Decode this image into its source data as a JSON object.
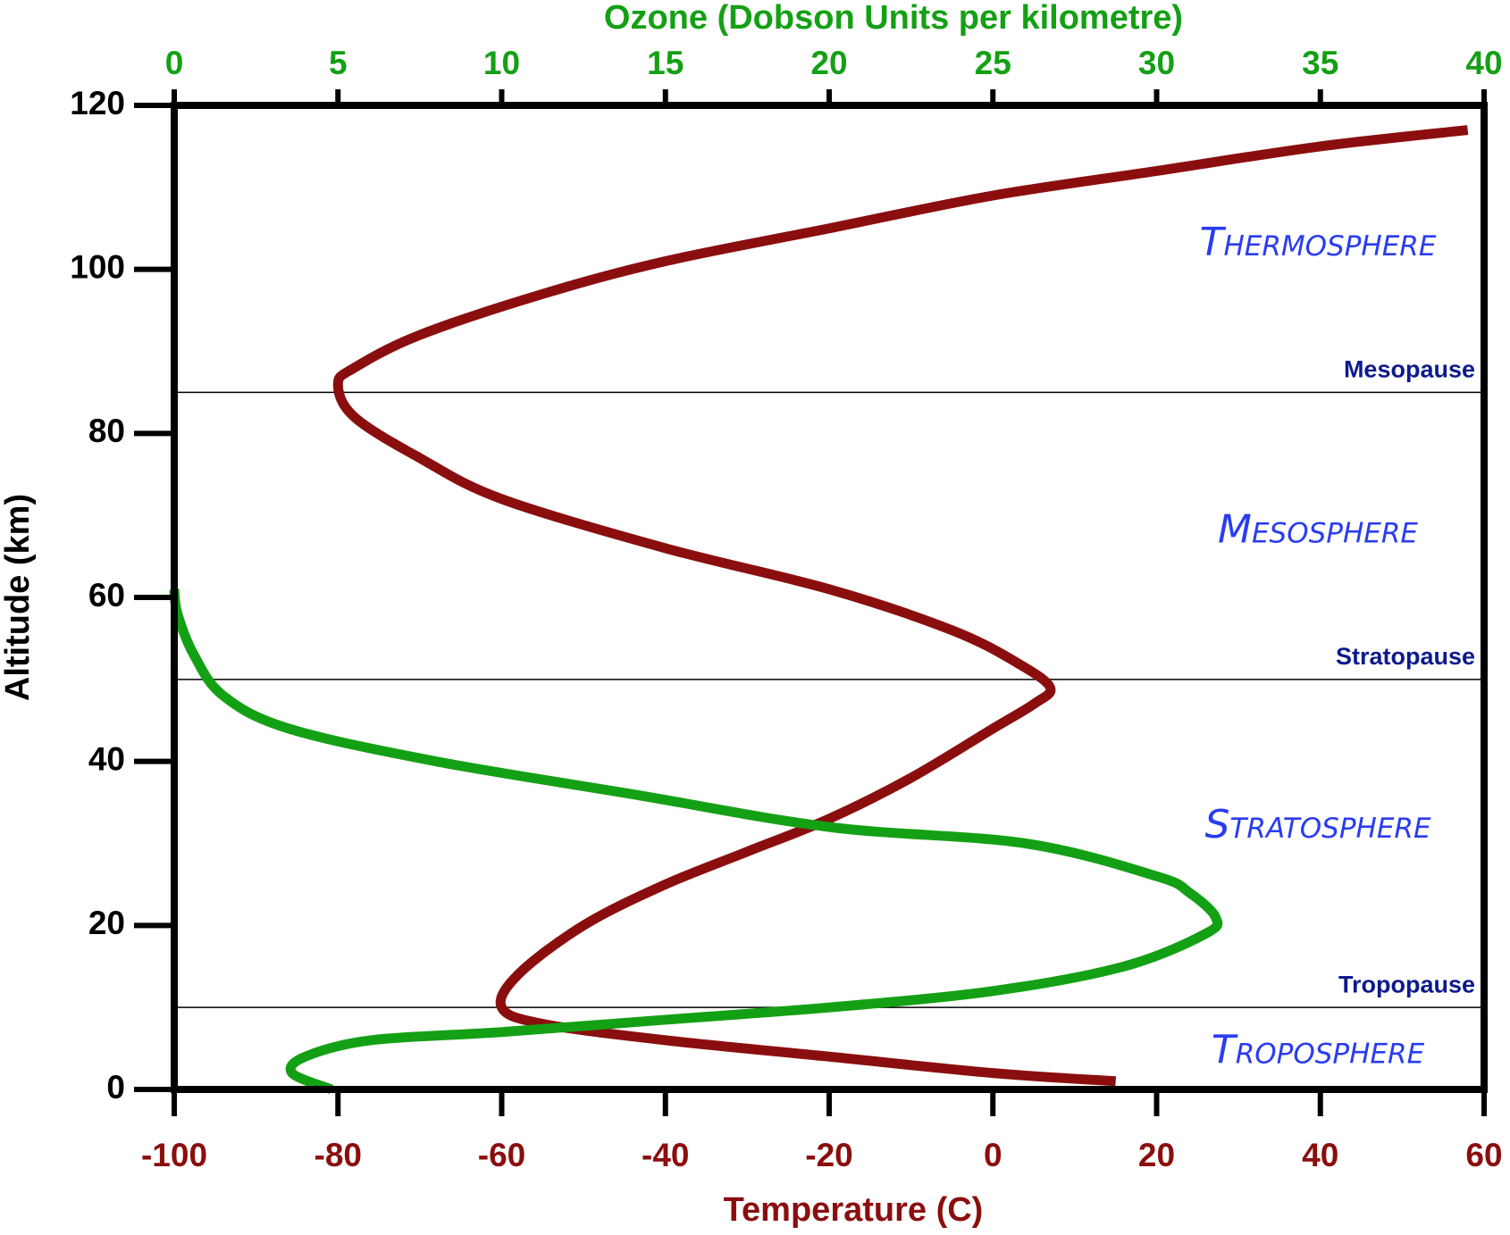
{
  "chart_data": {
    "type": "line",
    "title": "Ozone (Dobson Units per kilometre)",
    "x_label": "Temperature (C)",
    "y_label": "Altitude (km)",
    "xlim": [
      -100,
      60
    ],
    "xticks": [
      -100,
      -80,
      -60,
      -40,
      -20,
      0,
      20,
      40,
      60
    ],
    "x2lim": [
      0,
      40
    ],
    "x2ticks": [
      0,
      5,
      10,
      15,
      20,
      25,
      30,
      35,
      40
    ],
    "ylim": [
      0,
      120
    ],
    "yticks": [
      0,
      20,
      40,
      60,
      80,
      100,
      120
    ],
    "series": [
      {
        "name": "Temperature",
        "color": "#8b0e0e",
        "x": [
          15,
          0,
          -20,
          -40,
          -55,
          -60,
          -58,
          -50,
          -40,
          -30,
          -20,
          -10,
          0,
          5,
          7,
          3,
          -5,
          -20,
          -40,
          -60,
          -70,
          -78,
          -80,
          -78,
          -70,
          -55,
          -40,
          -20,
          0,
          20,
          40,
          58
        ],
        "values": [
          1,
          2,
          4,
          6,
          8,
          10,
          14,
          20,
          25,
          29,
          33,
          38,
          44,
          47,
          49,
          52,
          56,
          61,
          66,
          72,
          77,
          82,
          86,
          88,
          92,
          97,
          101,
          105,
          109,
          112,
          115,
          117
        ]
      },
      {
        "name": "Ozone",
        "color": "#14a014",
        "axis": "x2",
        "x": [
          4.8,
          3.6,
          4,
          6,
          10,
          15,
          20,
          25,
          29,
          31.5,
          31.8,
          31,
          30,
          26,
          20,
          14,
          8,
          3.5,
          1.5,
          0.6,
          0.1,
          0
        ],
        "values": [
          0,
          2,
          4,
          6,
          7,
          8.5,
          10,
          12,
          15,
          19,
          21,
          24,
          26,
          30,
          32,
          36,
          40,
          44,
          48,
          53,
          58,
          61
        ]
      }
    ],
    "boundaries": [
      {
        "label": "Mesopause",
        "value": 85
      },
      {
        "label": "Stratopause",
        "value": 50
      },
      {
        "label": "Tropopause",
        "value": 10
      }
    ],
    "layers": [
      "Thermosphere",
      "Mesosphere",
      "Stratosphere",
      "Troposphere"
    ]
  }
}
